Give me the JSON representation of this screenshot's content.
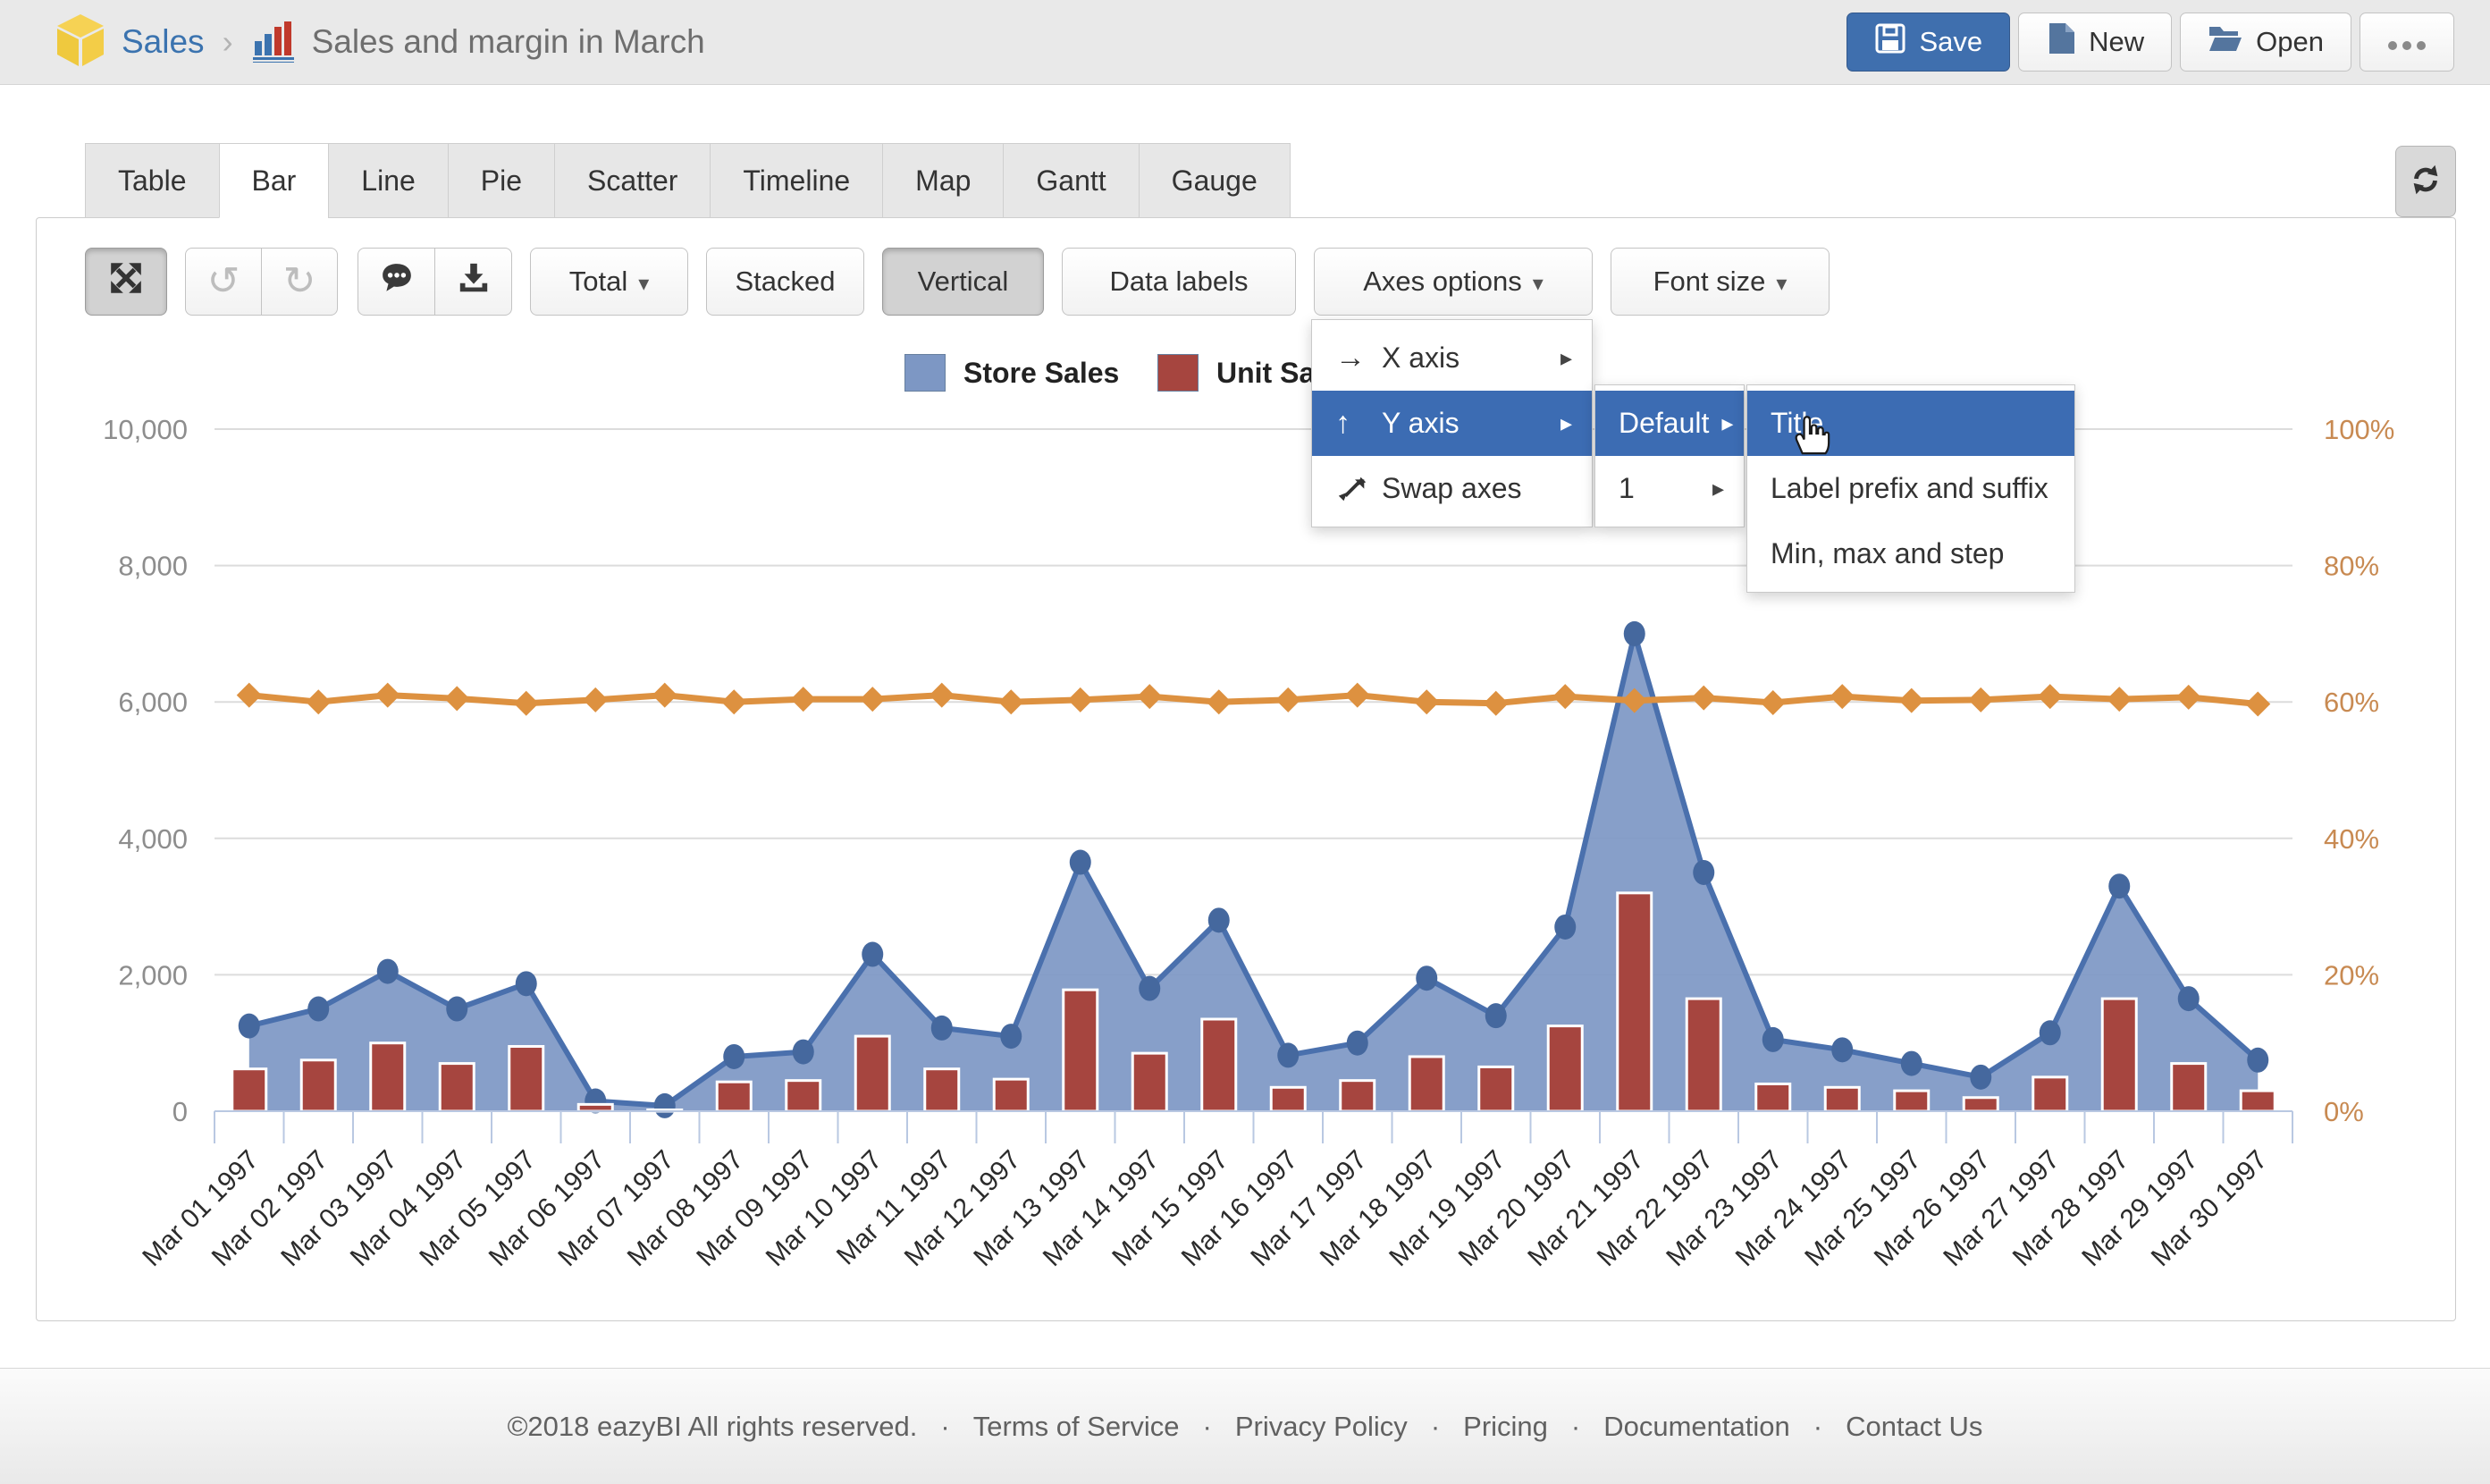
{
  "header": {
    "breadcrumb": "Sales",
    "title": "Sales and margin in March",
    "save_label": "Save",
    "new_label": "New",
    "open_label": "Open"
  },
  "tabs": {
    "items": [
      "Table",
      "Bar",
      "Line",
      "Pie",
      "Scatter",
      "Timeline",
      "Map",
      "Gantt",
      "Gauge"
    ],
    "active": "Bar"
  },
  "toolbar": {
    "total_label": "Total",
    "stacked_label": "Stacked",
    "vertical_label": "Vertical",
    "data_labels_label": "Data labels",
    "axes_options_label": "Axes options",
    "font_size_label": "Font size"
  },
  "legend": {
    "items": [
      {
        "label": "Store Sales",
        "color": "#7d97c4"
      },
      {
        "label": "Unit Sa",
        "color": "#a6453f"
      }
    ]
  },
  "menus": {
    "axes_menu": [
      {
        "label": "X axis",
        "icon": "x-axis-arrow-icon",
        "glyph": "→",
        "has_submenu": true,
        "highlighted": false
      },
      {
        "label": "Y axis",
        "icon": "y-axis-arrow-icon",
        "glyph": "↑",
        "has_submenu": true,
        "highlighted": true
      },
      {
        "label": "Swap axes",
        "icon": "swap-axes-icon",
        "glyph": "swap",
        "has_submenu": false,
        "highlighted": false
      }
    ],
    "y_axis_submenu": [
      {
        "label": "Default",
        "has_submenu": true,
        "arrow_inline": true,
        "highlighted": true
      },
      {
        "label": "1",
        "has_submenu": true,
        "arrow_inline": false,
        "highlighted": false
      }
    ],
    "default_submenu": [
      {
        "label": "Title",
        "highlighted": true
      },
      {
        "label": "Label prefix and suffix",
        "highlighted": false
      },
      {
        "label": "Min, max and step",
        "highlighted": false
      }
    ]
  },
  "chart_data": {
    "type": "combo",
    "categories": [
      "Mar 01 1997",
      "Mar 02 1997",
      "Mar 03 1997",
      "Mar 04 1997",
      "Mar 05 1997",
      "Mar 06 1997",
      "Mar 07 1997",
      "Mar 08 1997",
      "Mar 09 1997",
      "Mar 10 1997",
      "Mar 11 1997",
      "Mar 12 1997",
      "Mar 13 1997",
      "Mar 14 1997",
      "Mar 15 1997",
      "Mar 16 1997",
      "Mar 17 1997",
      "Mar 18 1997",
      "Mar 19 1997",
      "Mar 20 1997",
      "Mar 21 1997",
      "Mar 22 1997",
      "Mar 23 1997",
      "Mar 24 1997",
      "Mar 25 1997",
      "Mar 26 1997",
      "Mar 27 1997",
      "Mar 28 1997",
      "Mar 29 1997",
      "Mar 30 1997"
    ],
    "series": [
      {
        "name": "Store Sales",
        "type": "area",
        "y_axis": "left",
        "values": [
          1250,
          1500,
          2050,
          1500,
          1870,
          150,
          80,
          800,
          870,
          2300,
          1220,
          1100,
          3650,
          1800,
          2800,
          820,
          1000,
          1950,
          1400,
          2700,
          7000,
          3500,
          1050,
          900,
          700,
          500,
          1150,
          3300,
          1650,
          750
        ]
      },
      {
        "name": "Unit Sa",
        "type": "bar",
        "y_axis": "left",
        "values": [
          620,
          750,
          1000,
          700,
          950,
          100,
          20,
          430,
          450,
          1100,
          620,
          470,
          1780,
          850,
          1350,
          350,
          450,
          800,
          650,
          1250,
          3200,
          1650,
          400,
          350,
          300,
          200,
          500,
          1650,
          700,
          300
        ]
      },
      {
        "name": "",
        "type": "line",
        "y_axis": "right",
        "values": [
          61,
          60,
          61,
          60.5,
          59.8,
          60.3,
          61,
          60,
          60.4,
          60.4,
          61,
          60,
          60.3,
          60.8,
          60,
          60.3,
          61,
          60,
          59.8,
          60.8,
          60.2,
          60.6,
          59.9,
          60.8,
          60.2,
          60.3,
          60.8,
          60.4,
          60.7,
          59.7
        ]
      }
    ],
    "left_axis": {
      "min": 0,
      "max": 10000,
      "step": 2000,
      "tick_labels": [
        "0",
        "2,000",
        "4,000",
        "6,000",
        "8,000",
        "10,000"
      ]
    },
    "right_axis": {
      "min": 0,
      "max": 100,
      "step": 20,
      "tick_labels": [
        "0%",
        "20%",
        "40%",
        "60%",
        "80%",
        "100%"
      ]
    },
    "grid": true,
    "legend_position": "top",
    "title": ""
  },
  "footer": {
    "copyright": "©2018 eazyBI All rights reserved.",
    "separator": "·",
    "links": [
      "Terms of Service",
      "Privacy Policy",
      "Pricing",
      "Documentation",
      "Contact Us"
    ]
  },
  "colors": {
    "accent_blue": "#3c6cb3",
    "area_fill": "#7d97c4",
    "area_stroke": "#4a70ad",
    "marker_blue": "#45689e",
    "bar_fill": "#a6453f",
    "line_orange": "#dd9140",
    "left_axis_label": "#8d8d8d",
    "right_axis_label": "#c88a52",
    "gridline": "#dcdcdc",
    "baseline": "#b9c8e2",
    "x_label": "#2b2b2b"
  }
}
